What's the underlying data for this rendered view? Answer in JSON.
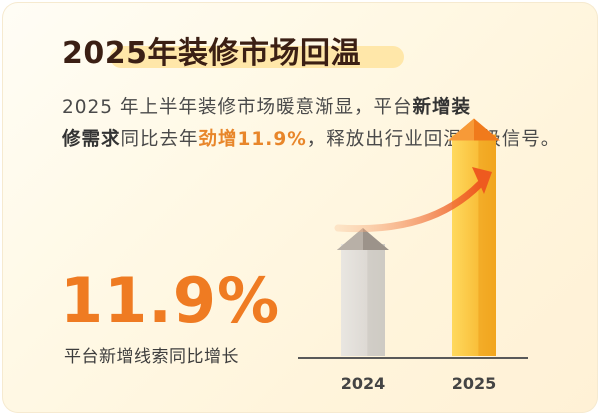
{
  "title": "2025年装修市场回温",
  "paragraph": {
    "p1": "2025 年上半年装修市场暖意渐显，平台",
    "p2": "新增装",
    "p3": "修需",
    "p4": "求",
    "p5": "同比去年",
    "p6": "劲增11.9%",
    "p7": "，释放出行业回温积极信号。"
  },
  "stat": {
    "value": "11.9%",
    "label": "平台新增线索同比增长"
  },
  "colors": {
    "accent": "#ef7b22",
    "title": "#3b1f14",
    "highlight": "#ffe7a9"
  },
  "chart_data": {
    "type": "bar",
    "categories": [
      "2024",
      "2025"
    ],
    "series": [
      {
        "values": [
          1.0,
          1.119
        ]
      }
    ],
    "colors": [
      "#d9d5cf",
      "#f6b62c"
    ],
    "trend_arrow": true
  }
}
